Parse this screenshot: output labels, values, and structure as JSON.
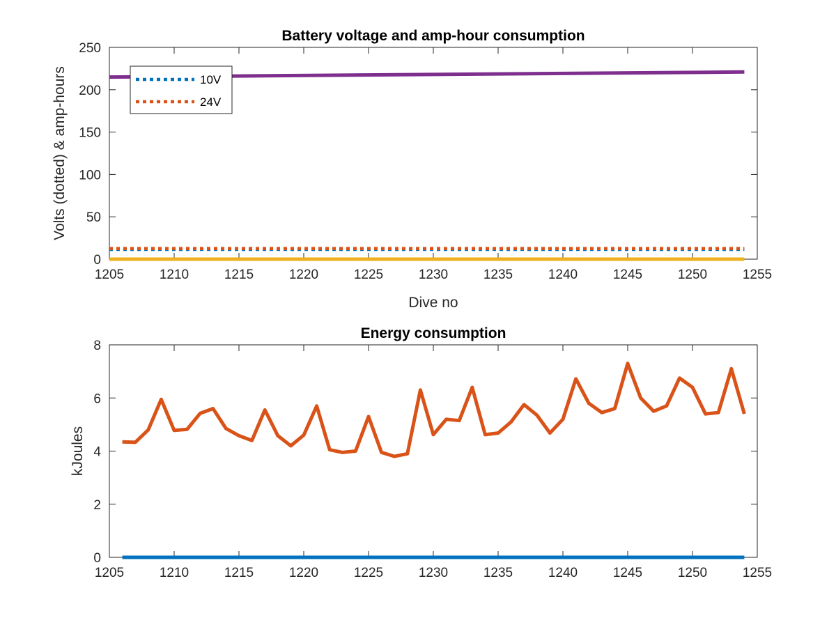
{
  "chart_data": [
    {
      "type": "line",
      "title": "Battery voltage and amp-hour consumption",
      "xlabel": "Dive no",
      "ylabel": "Volts (dotted) & amp-hours",
      "xlim": [
        1205,
        1255
      ],
      "ylim": [
        0,
        250
      ],
      "xticks": [
        "1205",
        "1210",
        "1215",
        "1220",
        "1225",
        "1230",
        "1235",
        "1240",
        "1245",
        "1250",
        "1255"
      ],
      "yticks": [
        "0",
        "50",
        "100",
        "150",
        "200",
        "250"
      ],
      "grid": false,
      "legend": {
        "placement": "top-left",
        "entries": [
          "10V",
          "24V"
        ]
      },
      "series": [
        {
          "name": "10V",
          "style": "dotted",
          "color": "#0072BD",
          "x": [
            1205,
            1254
          ],
          "y": [
            11.5,
            11.5
          ]
        },
        {
          "name": "24V",
          "style": "dotted",
          "color": "#D95319",
          "x": [
            1205,
            1254
          ],
          "y": [
            12.5,
            12.5
          ]
        },
        {
          "style": "solid",
          "color": "#EDB120",
          "x": [
            1205,
            1254
          ],
          "y": [
            0,
            0
          ]
        },
        {
          "style": "solid",
          "color": "#7E2F8E",
          "x": [
            1205,
            1254
          ],
          "y": [
            215,
            221
          ]
        }
      ]
    },
    {
      "type": "line",
      "title": "Energy consumption",
      "xlabel": "",
      "ylabel": "kJoules",
      "xlim": [
        1205,
        1255
      ],
      "ylim": [
        0,
        8
      ],
      "xticks": [
        "1205",
        "1210",
        "1215",
        "1220",
        "1225",
        "1230",
        "1235",
        "1240",
        "1245",
        "1250",
        "1255"
      ],
      "yticks": [
        "0",
        "2",
        "4",
        "6",
        "8"
      ],
      "grid": false,
      "series": [
        {
          "style": "solid",
          "color": "#0072BD",
          "x": [
            1206,
            1254
          ],
          "y": [
            0,
            0
          ]
        },
        {
          "style": "solid",
          "color": "#D95319",
          "x": [
            1206,
            1207,
            1208,
            1209,
            1210,
            1211,
            1212,
            1213,
            1214,
            1215,
            1216,
            1217,
            1218,
            1219,
            1220,
            1221,
            1222,
            1223,
            1224,
            1225,
            1226,
            1227,
            1228,
            1229,
            1230,
            1231,
            1232,
            1233,
            1234,
            1235,
            1236,
            1237,
            1238,
            1239,
            1240,
            1241,
            1242,
            1243,
            1244,
            1245,
            1246,
            1247,
            1248,
            1249,
            1250,
            1251,
            1252,
            1253,
            1254
          ],
          "y": [
            4.35,
            4.33,
            4.8,
            5.95,
            4.78,
            4.82,
            5.42,
            5.6,
            4.85,
            4.58,
            4.4,
            5.55,
            4.58,
            4.2,
            4.6,
            5.7,
            4.05,
            3.95,
            4.0,
            5.3,
            3.95,
            3.8,
            3.9,
            6.3,
            4.62,
            5.2,
            5.15,
            6.4,
            4.62,
            4.68,
            5.1,
            5.75,
            5.35,
            4.68,
            5.2,
            6.72,
            5.8,
            5.45,
            5.6,
            7.3,
            6.0,
            5.5,
            5.7,
            6.75,
            6.4,
            5.4,
            5.45,
            7.1,
            5.4
          ]
        }
      ]
    }
  ]
}
